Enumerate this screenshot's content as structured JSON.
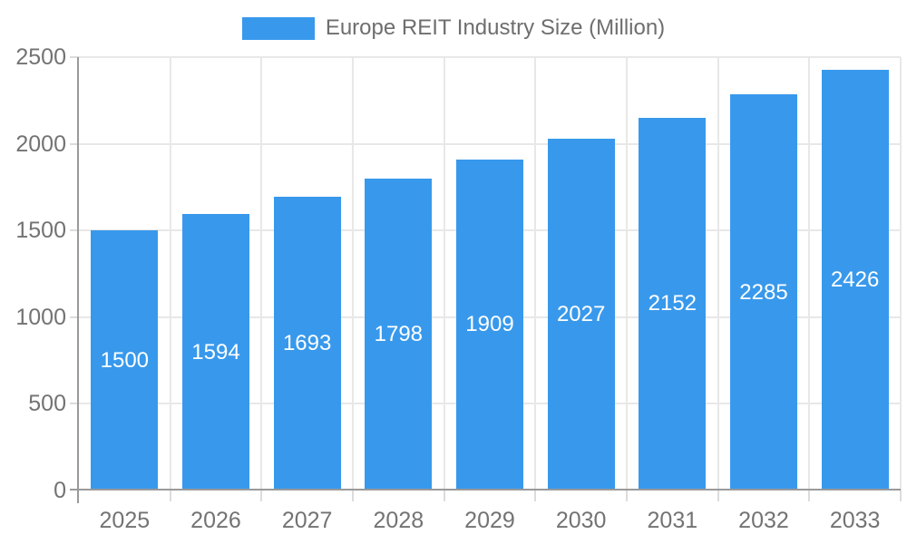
{
  "legend": {
    "label": "Europe REIT Industry Size (Million)"
  },
  "colors": {
    "bar": "#3899EC",
    "axis": "#9A9A9A",
    "grid": "#E8E8E8",
    "tick": "#DCDCDC",
    "axis_label": "#737373",
    "legend_text": "#6E6E6E",
    "value_label": "#FFFFFF",
    "background": "#FFFFFF"
  },
  "chart_data": {
    "type": "bar",
    "title": "Europe REIT Industry Size (Million)",
    "categories": [
      "2025",
      "2026",
      "2027",
      "2028",
      "2029",
      "2030",
      "2031",
      "2032",
      "2033"
    ],
    "values": [
      1500,
      1594,
      1693,
      1798,
      1909,
      2027,
      2152,
      2285,
      2426
    ],
    "xlabel": "",
    "ylabel": "",
    "ylim": [
      0,
      2500
    ],
    "yticks": [
      0,
      500,
      1000,
      1500,
      2000,
      2500
    ],
    "grid": true,
    "legend_position": "top-center",
    "value_labels": "inside-center",
    "bar_color": "#3899EC"
  }
}
